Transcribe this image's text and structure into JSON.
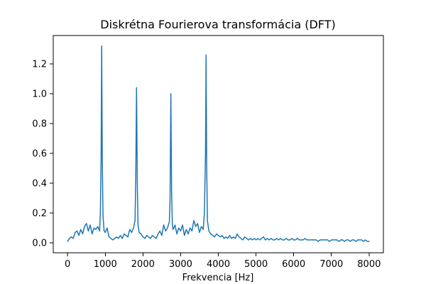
{
  "chart_data": {
    "type": "line",
    "title": "Diskrétna Fourierova transformácia (DFT)",
    "xlabel": "Frekvencia [Hz]",
    "ylabel": "",
    "xlim": [
      -380,
      8380
    ],
    "ylim": [
      -0.066,
      1.39
    ],
    "xticks": [
      0,
      1000,
      2000,
      3000,
      4000,
      5000,
      6000,
      7000,
      8000
    ],
    "yticks": [
      0.0,
      0.2,
      0.4,
      0.6,
      0.8,
      1.0,
      1.2
    ],
    "grid": false,
    "colors": {
      "series": "#1f77b4"
    },
    "series": [
      {
        "points": [
          [
            0,
            0.01
          ],
          [
            50,
            0.03
          ],
          [
            100,
            0.04
          ],
          [
            150,
            0.03
          ],
          [
            200,
            0.07
          ],
          [
            250,
            0.08
          ],
          [
            300,
            0.05
          ],
          [
            350,
            0.09
          ],
          [
            400,
            0.06
          ],
          [
            450,
            0.11
          ],
          [
            500,
            0.13
          ],
          [
            550,
            0.08
          ],
          [
            600,
            0.12
          ],
          [
            650,
            0.06
          ],
          [
            700,
            0.1
          ],
          [
            750,
            0.09
          ],
          [
            800,
            0.11
          ],
          [
            850,
            0.08
          ],
          [
            870,
            0.2
          ],
          [
            890,
            0.55
          ],
          [
            905,
            1.32
          ],
          [
            920,
            0.6
          ],
          [
            940,
            0.18
          ],
          [
            970,
            0.08
          ],
          [
            1000,
            0.07
          ],
          [
            1050,
            0.1
          ],
          [
            1100,
            0.04
          ],
          [
            1150,
            0.03
          ],
          [
            1200,
            0.02
          ],
          [
            1250,
            0.03
          ],
          [
            1300,
            0.04
          ],
          [
            1350,
            0.03
          ],
          [
            1400,
            0.05
          ],
          [
            1450,
            0.03
          ],
          [
            1500,
            0.06
          ],
          [
            1550,
            0.05
          ],
          [
            1600,
            0.04
          ],
          [
            1650,
            0.09
          ],
          [
            1700,
            0.07
          ],
          [
            1750,
            0.1
          ],
          [
            1790,
            0.15
          ],
          [
            1810,
            0.45
          ],
          [
            1830,
            1.04
          ],
          [
            1850,
            0.4
          ],
          [
            1870,
            0.12
          ],
          [
            1900,
            0.07
          ],
          [
            1950,
            0.06
          ],
          [
            2000,
            0.04
          ],
          [
            2050,
            0.03
          ],
          [
            2100,
            0.05
          ],
          [
            2150,
            0.04
          ],
          [
            2200,
            0.03
          ],
          [
            2250,
            0.05
          ],
          [
            2300,
            0.04
          ],
          [
            2350,
            0.03
          ],
          [
            2400,
            0.06
          ],
          [
            2450,
            0.08
          ],
          [
            2500,
            0.05
          ],
          [
            2550,
            0.12
          ],
          [
            2600,
            0.08
          ],
          [
            2650,
            0.1
          ],
          [
            2700,
            0.14
          ],
          [
            2720,
            0.3
          ],
          [
            2740,
            1.0
          ],
          [
            2760,
            0.35
          ],
          [
            2780,
            0.12
          ],
          [
            2800,
            0.09
          ],
          [
            2850,
            0.12
          ],
          [
            2900,
            0.06
          ],
          [
            2950,
            0.1
          ],
          [
            3000,
            0.08
          ],
          [
            3050,
            0.12
          ],
          [
            3100,
            0.05
          ],
          [
            3150,
            0.09
          ],
          [
            3200,
            0.06
          ],
          [
            3250,
            0.1
          ],
          [
            3300,
            0.08
          ],
          [
            3350,
            0.15
          ],
          [
            3400,
            0.11
          ],
          [
            3450,
            0.13
          ],
          [
            3500,
            0.07
          ],
          [
            3550,
            0.11
          ],
          [
            3600,
            0.09
          ],
          [
            3630,
            0.2
          ],
          [
            3660,
            0.6
          ],
          [
            3675,
            1.26
          ],
          [
            3690,
            0.55
          ],
          [
            3710,
            0.15
          ],
          [
            3750,
            0.08
          ],
          [
            3800,
            0.06
          ],
          [
            3850,
            0.05
          ],
          [
            3900,
            0.04
          ],
          [
            3950,
            0.06
          ],
          [
            4000,
            0.05
          ],
          [
            4050,
            0.04
          ],
          [
            4100,
            0.05
          ],
          [
            4150,
            0.03
          ],
          [
            4200,
            0.04
          ],
          [
            4250,
            0.03
          ],
          [
            4300,
            0.05
          ],
          [
            4350,
            0.03
          ],
          [
            4400,
            0.04
          ],
          [
            4450,
            0.03
          ],
          [
            4500,
            0.06
          ],
          [
            4550,
            0.04
          ],
          [
            4600,
            0.03
          ],
          [
            4650,
            0.02
          ],
          [
            4700,
            0.04
          ],
          [
            4750,
            0.03
          ],
          [
            4800,
            0.02
          ],
          [
            4850,
            0.03
          ],
          [
            4900,
            0.02
          ],
          [
            4950,
            0.03
          ],
          [
            5000,
            0.02
          ],
          [
            5050,
            0.03
          ],
          [
            5100,
            0.02
          ],
          [
            5150,
            0.03
          ],
          [
            5200,
            0.04
          ],
          [
            5250,
            0.02
          ],
          [
            5300,
            0.03
          ],
          [
            5350,
            0.02
          ],
          [
            5400,
            0.03
          ],
          [
            5450,
            0.02
          ],
          [
            5500,
            0.02
          ],
          [
            5550,
            0.03
          ],
          [
            5600,
            0.02
          ],
          [
            5650,
            0.03
          ],
          [
            5700,
            0.02
          ],
          [
            5750,
            0.02
          ],
          [
            5800,
            0.03
          ],
          [
            5850,
            0.02
          ],
          [
            5900,
            0.02
          ],
          [
            5950,
            0.03
          ],
          [
            6000,
            0.02
          ],
          [
            6050,
            0.02
          ],
          [
            6100,
            0.03
          ],
          [
            6150,
            0.02
          ],
          [
            6200,
            0.02
          ],
          [
            6250,
            0.02
          ],
          [
            6300,
            0.03
          ],
          [
            6350,
            0.02
          ],
          [
            6400,
            0.02
          ],
          [
            6450,
            0.02
          ],
          [
            6500,
            0.02
          ],
          [
            6550,
            0.02
          ],
          [
            6600,
            0.02
          ],
          [
            6650,
            0.01
          ],
          [
            6700,
            0.02
          ],
          [
            6750,
            0.02
          ],
          [
            6800,
            0.02
          ],
          [
            6850,
            0.02
          ],
          [
            6900,
            0.02
          ],
          [
            6950,
            0.01
          ],
          [
            7000,
            0.02
          ],
          [
            7050,
            0.02
          ],
          [
            7100,
            0.02
          ],
          [
            7150,
            0.02
          ],
          [
            7200,
            0.01
          ],
          [
            7250,
            0.02
          ],
          [
            7300,
            0.02
          ],
          [
            7350,
            0.01
          ],
          [
            7400,
            0.02
          ],
          [
            7450,
            0.02
          ],
          [
            7500,
            0.01
          ],
          [
            7550,
            0.02
          ],
          [
            7600,
            0.02
          ],
          [
            7650,
            0.01
          ],
          [
            7700,
            0.02
          ],
          [
            7750,
            0.02
          ],
          [
            7800,
            0.02
          ],
          [
            7850,
            0.01
          ],
          [
            7900,
            0.02
          ],
          [
            7950,
            0.01
          ],
          [
            8000,
            0.01
          ]
        ]
      }
    ]
  }
}
